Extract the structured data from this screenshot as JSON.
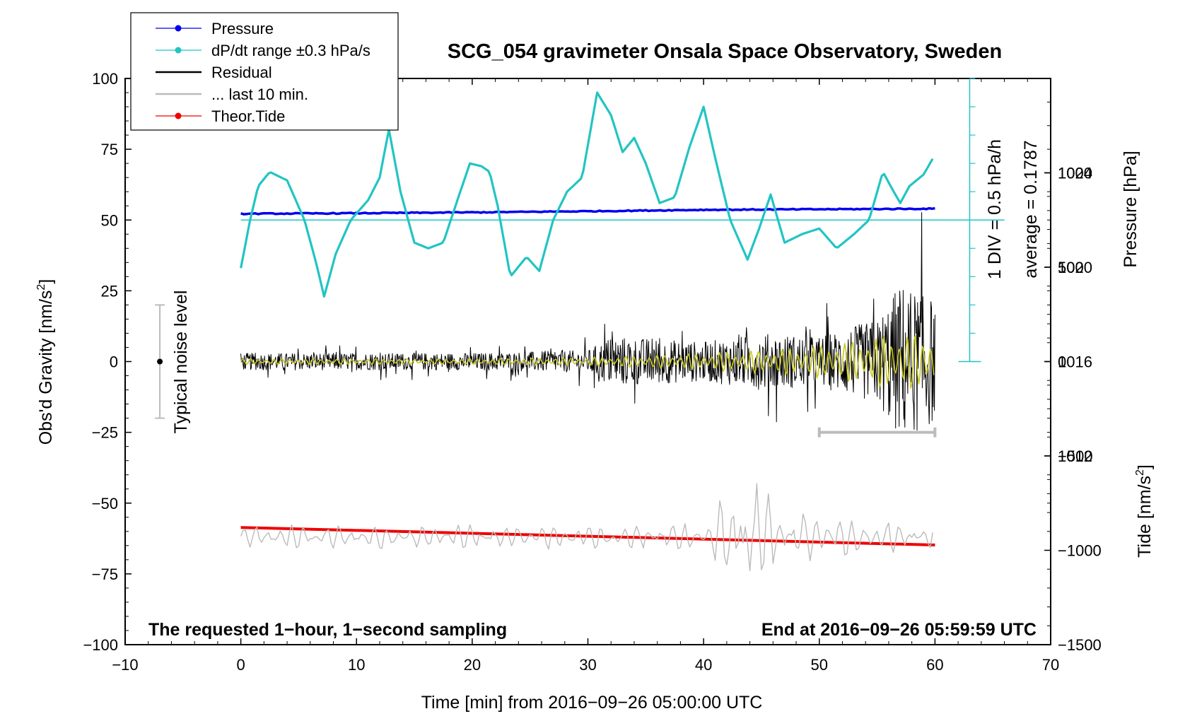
{
  "chart_data": {
    "type": "line",
    "title": "SCG_054 gravimeter Onsala Space Observatory, Sweden",
    "xlabel": "Time [min] from 2016−09−26 05:00:00 UTC",
    "ylabel_left_main": "Obs'd Gravity [nm/s",
    "ylabel_left_sup": "2",
    "ylabel_left_close": "]",
    "ylabel_right_pressure": "Pressure [hPa]",
    "ylabel_right_tide_main": "Tide [nm/s",
    "ylabel_right_tide_sup": "2",
    "ylabel_right_tide_close": "]",
    "xlim": [
      -10,
      70
    ],
    "ylim": [
      -100,
      100
    ],
    "pressure_lim": [
      1004,
      1028
    ],
    "tide_lim": [
      -1500,
      1500
    ],
    "x_ticks": [
      -10,
      0,
      10,
      20,
      30,
      40,
      50,
      60,
      70
    ],
    "x_tick_labels": [
      "−10",
      "0",
      "10",
      "20",
      "30",
      "40",
      "50",
      "60",
      "70"
    ],
    "y_ticks": [
      100,
      75,
      50,
      25,
      0,
      -25,
      -50,
      -75,
      -100
    ],
    "y_tick_labels": [
      "100",
      "75",
      "50",
      "25",
      "0",
      "−25",
      "−50",
      "−75",
      "−100"
    ],
    "pressure_ticks": [
      1024,
      1020,
      1016,
      1012
    ],
    "pressure_tick_labels": [
      "1024",
      "1020",
      "1016",
      "1012"
    ],
    "tide_ticks": [
      1000,
      500,
      0,
      -500,
      -1000,
      -1500
    ],
    "tide_tick_labels": [
      "1000",
      "500",
      "0",
      "−500",
      "−1000",
      "−1500"
    ],
    "legend": [
      {
        "label": "Pressure",
        "color": "#0000ee",
        "marker": true
      },
      {
        "label": "dP/dt range ±0.3 hPa/s",
        "color": "#22c4c4",
        "marker": true
      },
      {
        "label": "Residual",
        "color": "#000000",
        "marker": false
      },
      {
        "label": "... last 10 min.",
        "color": "#bbbbbb",
        "marker": false
      },
      {
        "label": "Theor.Tide",
        "color": "#ee0000",
        "marker": true
      }
    ],
    "annotations": {
      "noise_label": "Typical noise level",
      "noise_range": [
        -20,
        20
      ],
      "dpdt_scale": "1 DIV = 0.5 hPa/h",
      "dpdt_average": "average = 0.1787",
      "dpdt_baseline": 50,
      "bottom_left": "The requested 1−hour, 1−second sampling",
      "bottom_right": "End at 2016−09−26 05:59:59 UTC",
      "last10_range": [
        50,
        60
      ],
      "last10_level": -25
    },
    "series": [
      {
        "name": "Pressure",
        "color": "#0000ee",
        "x": [
          0,
          10,
          20,
          30,
          40,
          50,
          60
        ],
        "y": [
          52.2,
          52.4,
          52.7,
          53.1,
          53.6,
          53.8,
          54.0
        ]
      },
      {
        "name": "dP/dt range ±0.3 hPa/s",
        "color": "#22c4c4",
        "x": [
          0,
          0.8,
          1.5,
          2.5,
          4,
          5.5,
          6.5,
          7.2,
          8.2,
          9.5,
          11,
          12,
          12.8,
          13.8,
          15,
          16.2,
          17.5,
          18.8,
          19.8,
          20.8,
          21.5,
          22.2,
          23.3,
          24.7,
          25.8,
          27,
          28.2,
          29.5,
          30.8,
          32,
          33,
          34,
          35,
          36.2,
          37.5,
          38.8,
          40,
          41,
          42.3,
          43.8,
          44.8,
          45.8,
          47,
          48.5,
          50,
          51.5,
          53,
          54.3,
          55.5,
          56.3,
          57,
          57.8,
          59,
          60
        ],
        "y": [
          33,
          50,
          62,
          67,
          64,
          50,
          35,
          23,
          38,
          50,
          57,
          65,
          82,
          60,
          42,
          40,
          42,
          58,
          70,
          69,
          67,
          55,
          30,
          37,
          32,
          50,
          60,
          65,
          95,
          87,
          74,
          79,
          70,
          56,
          58,
          76,
          90,
          72,
          50,
          36,
          47,
          59,
          42,
          45,
          47,
          40,
          45,
          50,
          67,
          61,
          56,
          62,
          66,
          73
        ]
      },
      {
        "name": "Residual",
        "color": "#000000",
        "x": [
          0,
          10,
          20,
          30,
          32,
          40,
          45,
          50,
          55,
          57,
          60
        ],
        "y": [
          0,
          0,
          0,
          0,
          0,
          0,
          0,
          0,
          0,
          0,
          0
        ],
        "amplitude": [
          3,
          3,
          3,
          4,
          9,
          7,
          10,
          9,
          15,
          28,
          22
        ]
      },
      {
        "name": "Residual (smoothed)",
        "color": "#c8c820",
        "x": [
          0,
          10,
          20,
          30,
          40,
          48,
          52,
          56,
          60
        ],
        "y": [
          0,
          0,
          0,
          0,
          0,
          0,
          0,
          0,
          0
        ],
        "amplitude": [
          1,
          1,
          1,
          1.5,
          3,
          5,
          7,
          10,
          10
        ]
      },
      {
        "name": "... last 10 min.",
        "color": "#bbbbbb",
        "x": [
          0,
          10,
          20,
          30,
          40,
          42,
          43.2,
          45,
          47,
          60
        ],
        "y": [
          -62,
          -62,
          -62,
          -62,
          -62,
          -62,
          -62,
          -62,
          -62,
          -62
        ],
        "amplitude": [
          4,
          4,
          4,
          4,
          5,
          14,
          26,
          18,
          8,
          5
        ]
      },
      {
        "name": "Theor.Tide",
        "color": "#ee0000",
        "x": [
          0,
          60
        ],
        "y": [
          -58.6,
          -64.8
        ]
      }
    ]
  }
}
